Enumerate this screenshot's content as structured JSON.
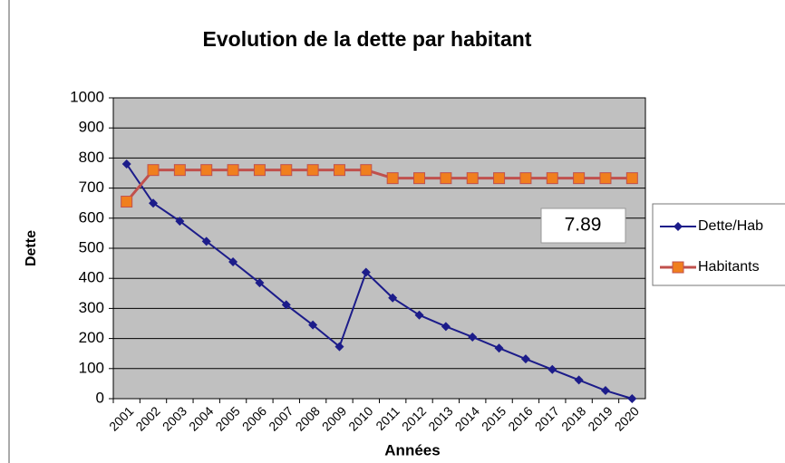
{
  "chart_data": {
    "type": "line",
    "title": "Evolution de la dette par habitant",
    "y_label": "Dette",
    "x_label": "Années",
    "annotation": "7.89",
    "categories": [
      "2001",
      "2002",
      "2003",
      "2004",
      "2005",
      "2006",
      "2007",
      "2008",
      "2009",
      "2010",
      "2011",
      "2012",
      "2013",
      "2014",
      "2015",
      "2016",
      "2017",
      "2018",
      "2019",
      "2020"
    ],
    "series": [
      {
        "name": "Dette/Hab",
        "color": "#1c1c8a",
        "marker": "diamond",
        "values": [
          780,
          650,
          590,
          523,
          455,
          385,
          312,
          245,
          173,
          420,
          335,
          278,
          240,
          205,
          168,
          132,
          97,
          62,
          27,
          0
        ]
      },
      {
        "name": "Habitants",
        "color": "#c0504d",
        "marker_color": "#f07f1e",
        "marker": "square",
        "values": [
          655,
          760,
          760,
          760,
          760,
          760,
          760,
          760,
          760,
          760,
          733,
          733,
          733,
          733,
          733,
          733,
          733,
          733,
          733,
          733
        ]
      }
    ],
    "ylim": [
      0,
      1000
    ],
    "yticks": [
      0,
      100,
      200,
      300,
      400,
      500,
      600,
      700,
      800,
      900,
      1000
    ],
    "grid": true,
    "plot_background": "#c0c0c0",
    "legend": "right"
  }
}
